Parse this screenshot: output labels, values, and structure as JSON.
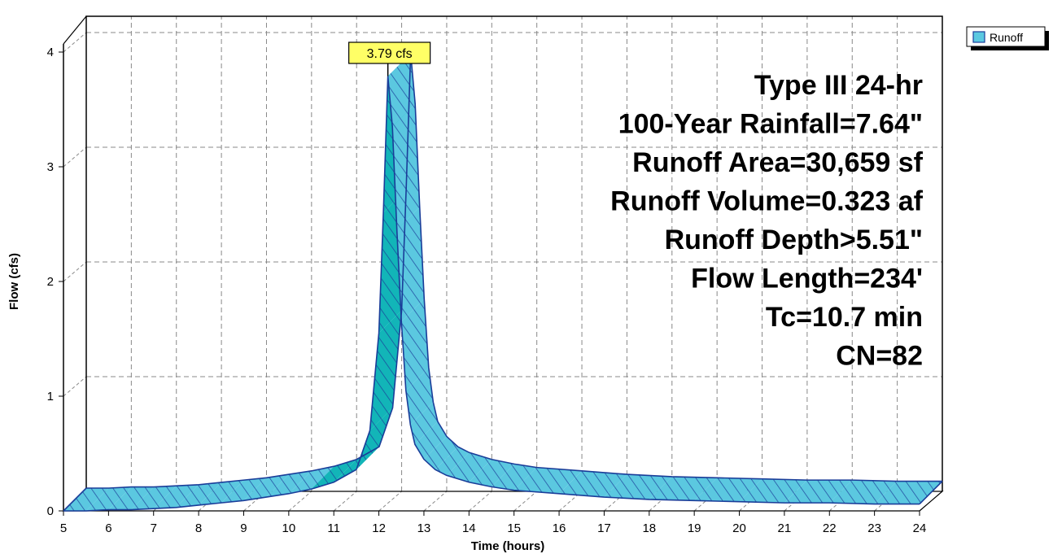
{
  "chart_data": {
    "type": "area",
    "xlabel": "Time  (hours)",
    "ylabel": "Flow  (cfs)",
    "xlim": [
      5,
      24
    ],
    "ylim": [
      0,
      4
    ],
    "x_ticks": [
      5,
      6,
      7,
      8,
      9,
      10,
      11,
      12,
      13,
      14,
      15,
      16,
      17,
      18,
      19,
      20,
      21,
      22,
      23,
      24
    ],
    "y_ticks": [
      0,
      1,
      2,
      3,
      4
    ],
    "grid": true,
    "legend_position": "top-right",
    "series": [
      {
        "name": "Runoff",
        "color": "#5bc8e0",
        "x": [
          5,
          5.5,
          6,
          6.5,
          7,
          7.5,
          8,
          8.5,
          9,
          9.5,
          10,
          10.5,
          11,
          11.5,
          11.8,
          12.0,
          12.1,
          12.2,
          12.3,
          12.4,
          12.5,
          12.6,
          12.7,
          12.8,
          13.0,
          13.25,
          13.5,
          14,
          14.5,
          15,
          16,
          17,
          18,
          19,
          20,
          21,
          22,
          23,
          24
        ],
        "values": [
          0.0,
          0.0,
          0.01,
          0.01,
          0.02,
          0.03,
          0.05,
          0.07,
          0.09,
          0.12,
          0.15,
          0.19,
          0.25,
          0.36,
          0.7,
          1.55,
          2.6,
          3.79,
          3.35,
          2.45,
          1.65,
          1.05,
          0.75,
          0.58,
          0.45,
          0.36,
          0.31,
          0.25,
          0.21,
          0.18,
          0.15,
          0.12,
          0.1,
          0.09,
          0.08,
          0.07,
          0.07,
          0.06,
          0.06
        ]
      }
    ],
    "annotations": [
      {
        "text": "3.79 cfs",
        "x": 12.2,
        "y": 3.79
      }
    ],
    "info_lines": [
      "Type III 24-hr",
      "100-Year Rainfall=7.64\"",
      "Runoff Area=30,659 sf",
      "Runoff Volume=0.323 af",
      "Runoff Depth>5.51\"",
      "Flow Length=234'",
      "Tc=10.7 min",
      "CN=82"
    ]
  }
}
